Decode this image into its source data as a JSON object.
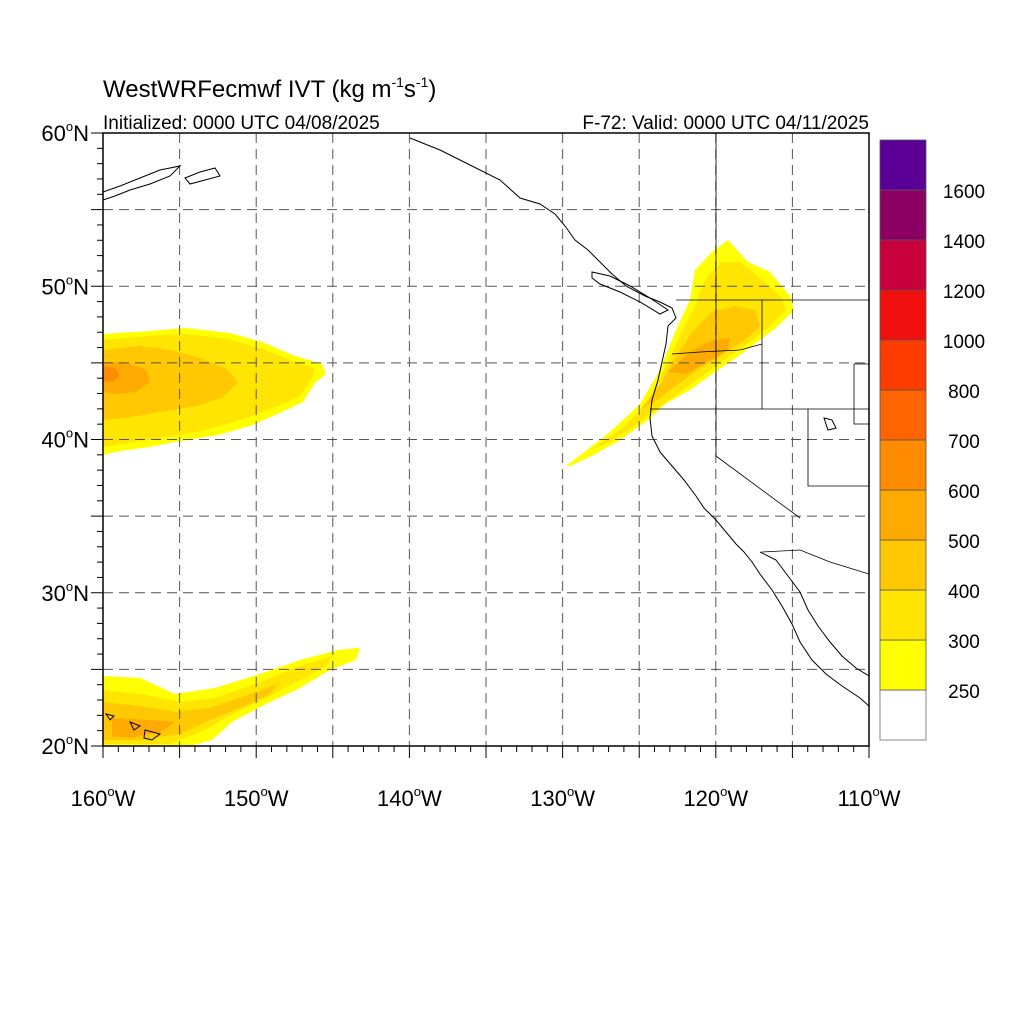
{
  "title": {
    "main": "WestWRFecmwf IVT (kg m",
    "exp1": "-1",
    "mid": "s",
    "exp2": "-1",
    "close": ")"
  },
  "subtitle_left": "Initialized: 0000 UTC 04/08/2025",
  "subtitle_right": "F-72: Valid: 0000 UTC 04/11/2025",
  "axes": {
    "lat_ticks": [
      {
        "value": 60,
        "label": "60",
        "hemi": "N"
      },
      {
        "value": 50,
        "label": "50",
        "hemi": "N"
      },
      {
        "value": 40,
        "label": "40",
        "hemi": "N"
      },
      {
        "value": 30,
        "label": "30",
        "hemi": "N"
      },
      {
        "value": 20,
        "label": "20",
        "hemi": "N"
      }
    ],
    "lon_ticks": [
      {
        "value": -160,
        "label": "160",
        "hemi": "W"
      },
      {
        "value": -150,
        "label": "150",
        "hemi": "W"
      },
      {
        "value": -140,
        "label": "140",
        "hemi": "W"
      },
      {
        "value": -130,
        "label": "130",
        "hemi": "W"
      },
      {
        "value": -120,
        "label": "120",
        "hemi": "W"
      },
      {
        "value": -110,
        "label": "110",
        "hemi": "W"
      }
    ],
    "lat_range": [
      20,
      60
    ],
    "lon_range": [
      -160,
      -110
    ],
    "grid_step_deg": 5
  },
  "colorbar": {
    "levels": [
      {
        "label": "250",
        "color": "#ffff00"
      },
      {
        "label": "300",
        "color": "#ffe500"
      },
      {
        "label": "400",
        "color": "#ffc800"
      },
      {
        "label": "500",
        "color": "#ffaa00"
      },
      {
        "label": "600",
        "color": "#ff8c00"
      },
      {
        "label": "700",
        "color": "#ff6400"
      },
      {
        "label": "800",
        "color": "#ff3c00"
      },
      {
        "label": "1000",
        "color": "#f01010"
      },
      {
        "label": "1200",
        "color": "#c8003c"
      },
      {
        "label": "1400",
        "color": "#8c0064"
      },
      {
        "label": "1600",
        "color": "#5a0096"
      }
    ],
    "below_color": "#ffffff"
  },
  "colors": {
    "ivt_250": "#ffff00",
    "ivt_300": "#ffe500",
    "ivt_400": "#ffc800",
    "ivt_500": "#ffaa00",
    "ivt_600": "#ff8c00",
    "grid": "#555555",
    "coast": "#000000",
    "border": "#888888"
  }
}
